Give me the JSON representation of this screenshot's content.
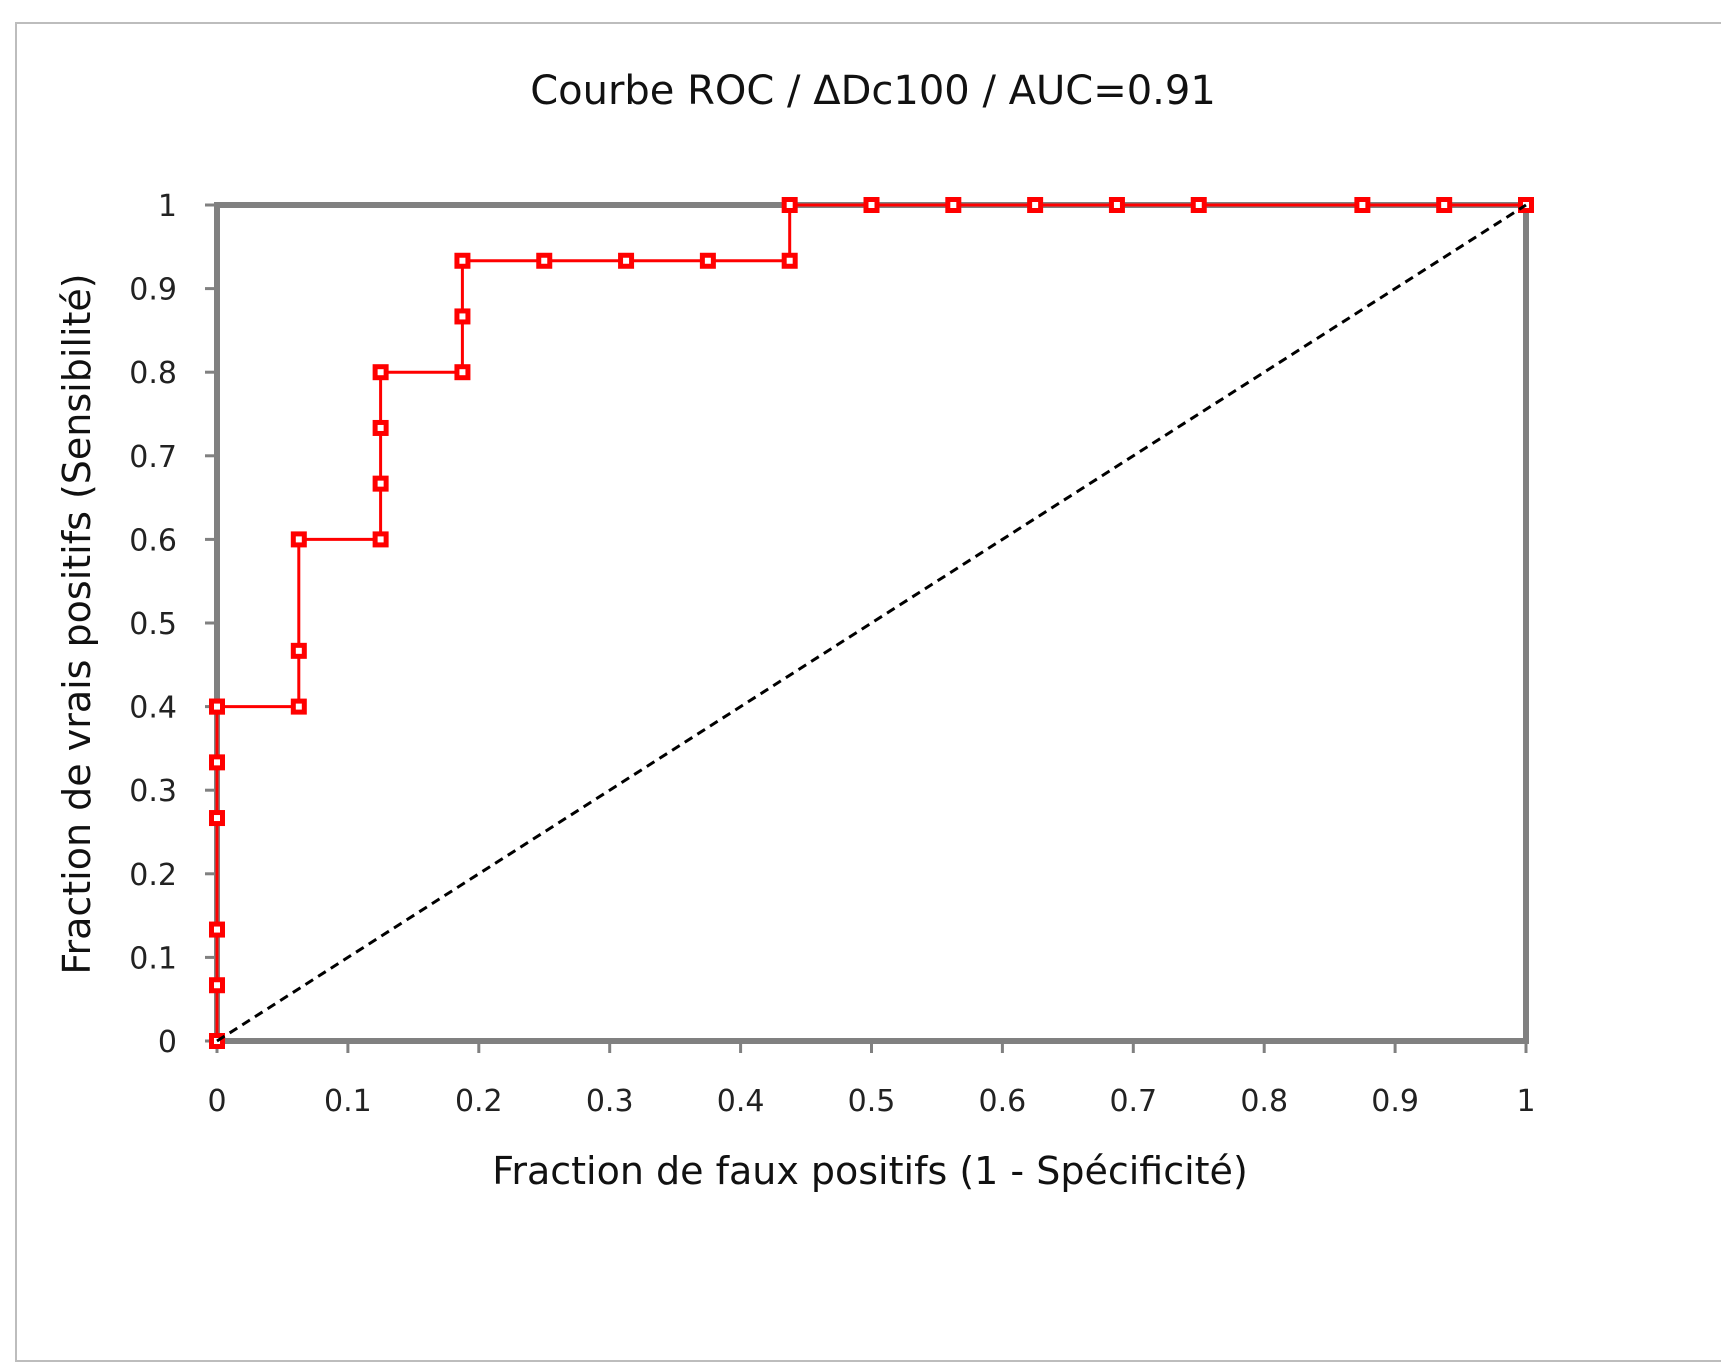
{
  "chart_data": {
    "type": "line",
    "title": "Courbe ROC / ΔDc100 / AUC=0.91",
    "xlabel": "Fraction de faux positifs (1 - Spécificité)",
    "ylabel": "Fraction de vrais positifs (Sensibilité)",
    "xlim": [
      0,
      1
    ],
    "ylim": [
      0,
      1
    ],
    "x_ticks": [
      "0",
      "0.1",
      "0.2",
      "0.3",
      "0.4",
      "0.5",
      "0.6",
      "0.7",
      "0.8",
      "0.9",
      "1"
    ],
    "y_ticks": [
      "0",
      "0.1",
      "0.2",
      "0.3",
      "0.4",
      "0.5",
      "0.6",
      "0.7",
      "0.8",
      "0.9",
      "1"
    ],
    "grid": false,
    "legend": "none",
    "series": [
      {
        "color": "#ff0000",
        "marker": "square",
        "x": [
          0,
          0,
          0,
          0,
          0,
          0,
          0,
          0.0625,
          0.0625,
          0.0625,
          0.125,
          0.125,
          0.125,
          0.125,
          0.1875,
          0.1875,
          0.1875,
          0.25,
          0.3125,
          0.375,
          0.4375,
          0.4375,
          0.5,
          0.5625,
          0.625,
          0.6875,
          0.75,
          0.875,
          0.9375,
          1
        ],
        "y": [
          0,
          0.0667,
          0.1333,
          0.2667,
          0.3333,
          0.4,
          0.4,
          0.4,
          0.4667,
          0.6,
          0.6,
          0.6667,
          0.7333,
          0.8,
          0.8,
          0.8667,
          0.9333,
          0.9333,
          0.9333,
          0.9333,
          0.9333,
          1,
          1,
          1,
          1,
          1,
          1,
          1,
          1,
          1
        ]
      },
      {
        "color": "#000000",
        "style": "dashed",
        "x": [
          0,
          1
        ],
        "y": [
          0,
          1
        ]
      }
    ],
    "colors": {
      "roc_curve": "#ff0000",
      "reference_line": "#000000",
      "plot_border": "#808080"
    }
  }
}
